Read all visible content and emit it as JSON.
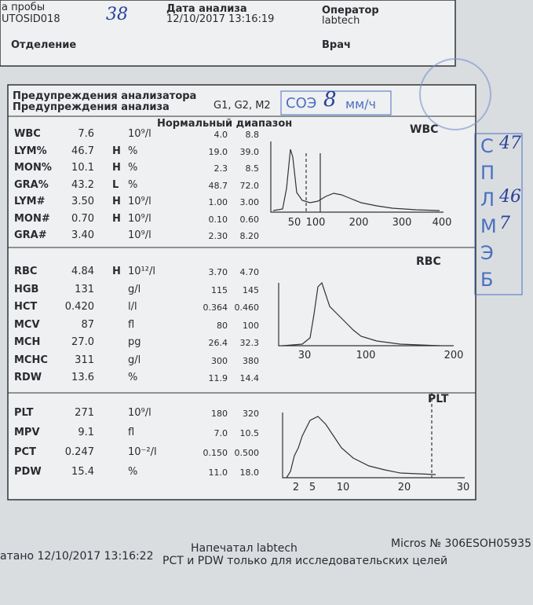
{
  "header": {
    "sample_label": "а пробы",
    "sample_id": "UTOSID018",
    "sample_note": "38",
    "date_label": "Дата анализа",
    "date": "12/10/2017 13:16:19",
    "operator_label": "Оператор",
    "operator": "labtech",
    "department_label": "Отделение",
    "doctor_label": "Врач"
  },
  "warnings": {
    "analyzer": "Предупреждения анализатора",
    "analysis": "Предупреждения анализа",
    "flags": "G1, G2, M2",
    "esr_label": "СОЭ",
    "esr_value": "8",
    "esr_unit": "мм/ч"
  },
  "normal_range_title": "Нормальный диапазон",
  "sections": [
    {
      "label": "WBC",
      "axis": [
        "50",
        "100",
        "200",
        "300",
        "400"
      ],
      "rows": [
        {
          "name": "WBC",
          "value": "7.6",
          "unit": "10⁹/l",
          "low": "4.0",
          "high": "8.8"
        },
        {
          "name": "LYM%",
          "value": "46.7",
          "flag": "H",
          "unit": "%",
          "low": "19.0",
          "high": "39.0"
        },
        {
          "name": "MON%",
          "value": "10.1",
          "flag": "H",
          "unit": "%",
          "low": "2.3",
          "high": "8.5"
        },
        {
          "name": "GRA%",
          "value": "43.2",
          "flag": "L",
          "unit": "%",
          "low": "48.7",
          "high": "72.0"
        },
        {
          "name": "LYM#",
          "value": "3.50",
          "flag": "H",
          "unit": "10⁹/l",
          "low": "1.00",
          "high": "3.00"
        },
        {
          "name": "MON#",
          "value": "0.70",
          "flag": "H",
          "unit": "10⁹/l",
          "low": "0.10",
          "high": "0.60"
        },
        {
          "name": "GRA#",
          "value": "3.40",
          "unit": "10⁹/l",
          "low": "2.30",
          "high": "8.20"
        }
      ]
    },
    {
      "label": "RBC",
      "axis": [
        "30",
        "100",
        "200"
      ],
      "rows": [
        {
          "name": "RBC",
          "value": "4.84",
          "flag": "H",
          "unit": "10¹²/l",
          "low": "3.70",
          "high": "4.70"
        },
        {
          "name": "HGB",
          "value": "131",
          "unit": "g/l",
          "low": "115",
          "high": "145"
        },
        {
          "name": "HCT",
          "value": "0.420",
          "unit": "l/l",
          "low": "0.364",
          "high": "0.460"
        },
        {
          "name": "MCV",
          "value": "87",
          "unit": "fl",
          "low": "80",
          "high": "100"
        },
        {
          "name": "MCH",
          "value": "27.0",
          "unit": "pg",
          "low": "26.4",
          "high": "32.3"
        },
        {
          "name": "MCHC",
          "value": "311",
          "unit": "g/l",
          "low": "300",
          "high": "380"
        },
        {
          "name": "RDW",
          "value": "13.6",
          "unit": "%",
          "low": "11.9",
          "high": "14.4"
        }
      ]
    },
    {
      "label": "PLT",
      "axis": [
        "2",
        "5",
        "10",
        "20",
        "30"
      ],
      "rows": [
        {
          "name": "PLT",
          "value": "271",
          "unit": "10⁹/l",
          "low": "180",
          "high": "320"
        },
        {
          "name": "MPV",
          "value": "9.1",
          "unit": "fl",
          "low": "7.0",
          "high": "10.5"
        },
        {
          "name": "PCT",
          "value": "0.247",
          "unit": "10⁻²/l",
          "low": "0.150",
          "high": "0.500"
        },
        {
          "name": "PDW",
          "value": "15.4",
          "unit": "%",
          "low": "11.0",
          "high": "18.0"
        }
      ]
    }
  ],
  "footer": {
    "printed_at": "атано 12/10/2017 13:16:22",
    "printed_by": "Напечатал labtech",
    "device": "Micros № 306ESOH05935",
    "note": "PCT и PDW только для исследовательских целей"
  },
  "stamp": {
    "letters": [
      {
        "letter": "С",
        "note": "47"
      },
      {
        "letter": "П"
      },
      {
        "letter": "Л",
        "note": "46"
      },
      {
        "letter": "М",
        "note": "7"
      },
      {
        "letter": "Э"
      },
      {
        "letter": "Б"
      }
    ]
  }
}
